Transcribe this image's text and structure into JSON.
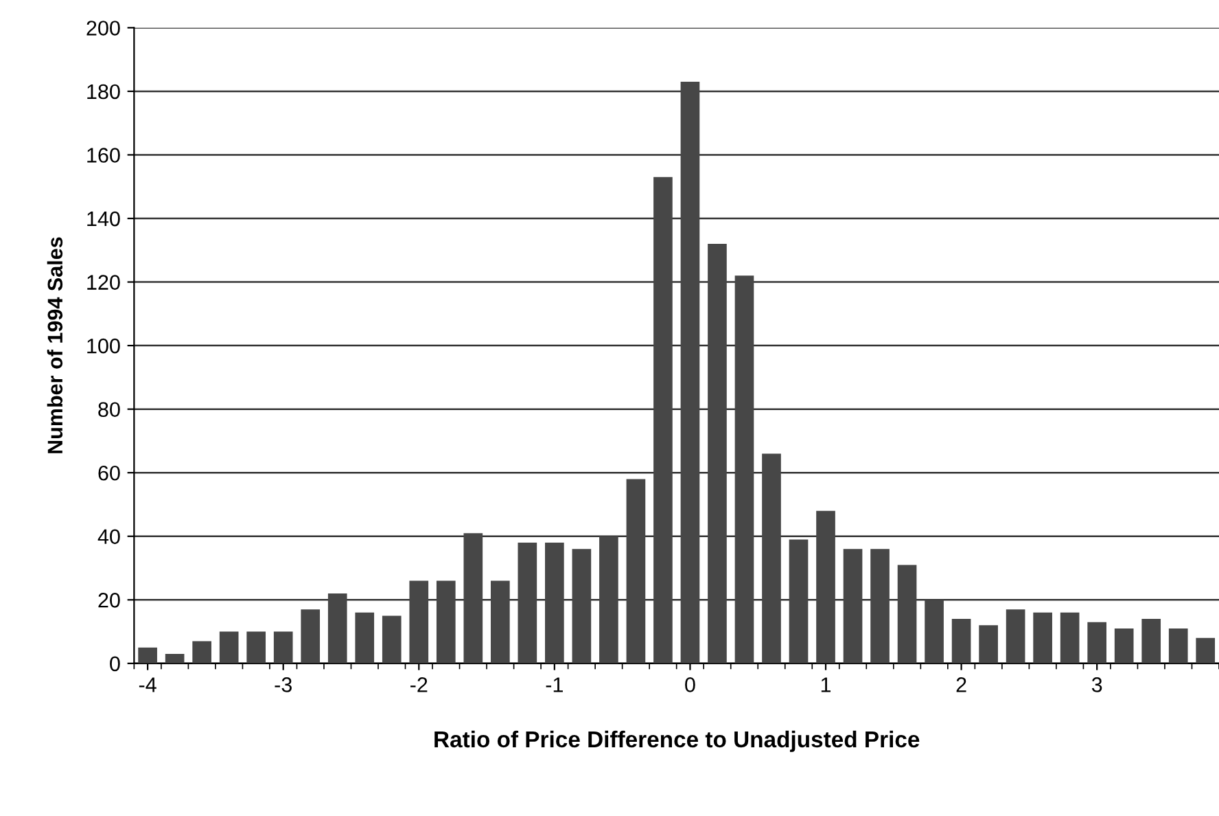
{
  "chart_data": {
    "type": "histogram",
    "xlabel": "Ratio of Price Difference to Unadjusted Price",
    "ylabel": "Number of 1994 Sales",
    "bins": [
      -4.1,
      -3.9,
      -3.7,
      -3.5,
      -3.3,
      -3.1,
      -2.9,
      -2.7,
      -2.5,
      -2.3,
      -2.1,
      -1.9,
      -1.7,
      -1.5,
      -1.3,
      -1.1,
      -0.9,
      -0.7,
      -0.5,
      -0.3,
      -0.1,
      0.1,
      0.3,
      0.5,
      0.7,
      0.9,
      1.1,
      1.3,
      1.5,
      1.7,
      1.9,
      2.1,
      2.3,
      2.5,
      2.7,
      2.9,
      3.1,
      3.3,
      3.5,
      3.7,
      3.9
    ],
    "values": [
      5,
      3,
      7,
      10,
      10,
      10,
      17,
      22,
      16,
      15,
      26,
      26,
      41,
      26,
      38,
      38,
      36,
      40,
      58,
      153,
      183,
      132,
      122,
      66,
      39,
      48,
      36,
      36,
      31,
      20,
      14,
      12,
      17,
      16,
      16,
      13,
      11,
      14,
      11,
      8
    ],
    "color": "#474747",
    "xlim": [
      -4.1,
      3.9
    ],
    "xticks": [
      -4,
      -3,
      -2,
      -1,
      0,
      1,
      2,
      3
    ],
    "ylim": [
      0,
      200
    ],
    "yticks": [
      0,
      20,
      40,
      60,
      80,
      100,
      120,
      140,
      160,
      180,
      200
    ],
    "grid": "y"
  }
}
